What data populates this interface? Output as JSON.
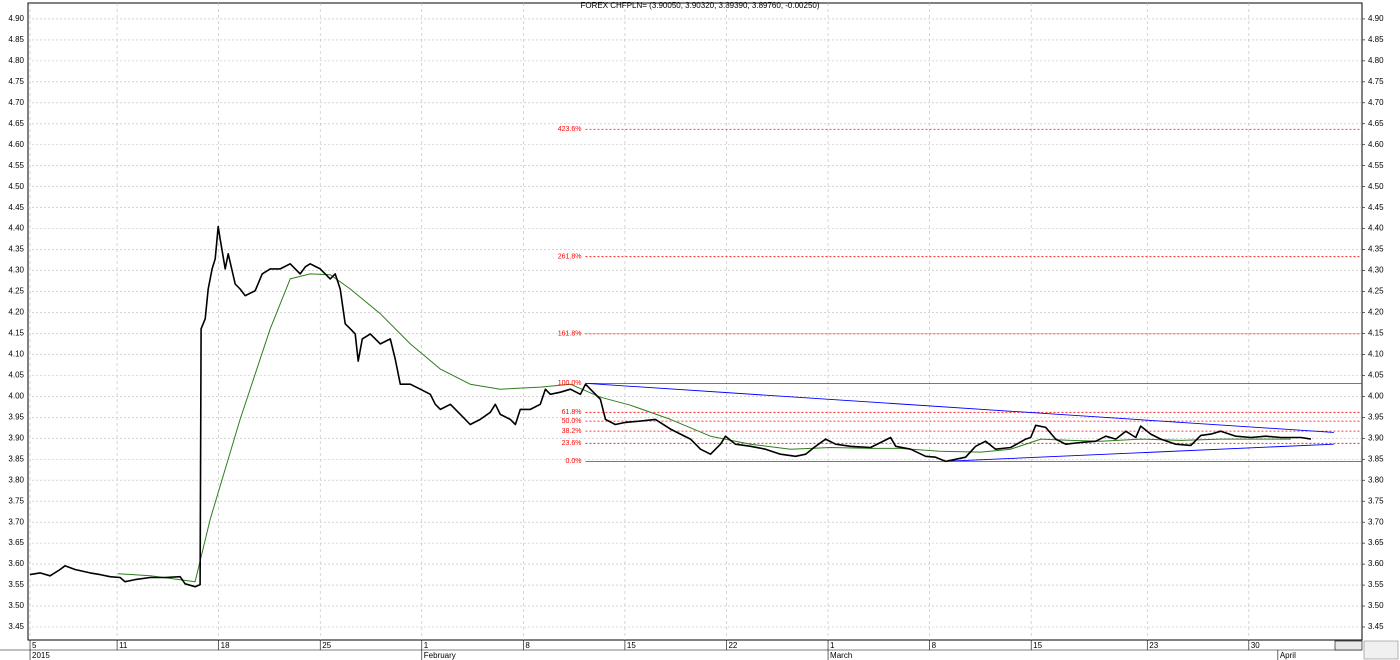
{
  "chart_data": {
    "type": "line",
    "title": "FOREX CHFPLN= (3.90050, 3.90320, 3.89390, 3.89760, -0.00250)",
    "xlim": [
      4.86,
      96.8
    ],
    "xticks": [
      {
        "value": 5,
        "label": "5"
      },
      {
        "value": 11,
        "label": "11"
      },
      {
        "value": 18,
        "label": "18"
      },
      {
        "value": 25,
        "label": "25"
      },
      {
        "value": 32,
        "label": "1"
      },
      {
        "value": 39,
        "label": "8"
      },
      {
        "value": 46,
        "label": "15"
      },
      {
        "value": 53,
        "label": "22"
      },
      {
        "value": 60,
        "label": "1"
      },
      {
        "value": 67,
        "label": "8"
      },
      {
        "value": 74,
        "label": "15"
      },
      {
        "value": 82,
        "label": "23"
      },
      {
        "value": 89,
        "label": "30"
      }
    ],
    "xticks_secondary": [
      {
        "value": 5,
        "label": "2015"
      },
      {
        "value": 32,
        "label": "February"
      },
      {
        "value": 60,
        "label": "March"
      },
      {
        "value": 91,
        "label": "April"
      }
    ],
    "ylim": [
      3.419,
      4.938
    ],
    "yticks": [
      3.45,
      {
        "value": 3.5,
        "label": "3.50"
      },
      3.55,
      {
        "value": 3.6,
        "label": "3.60"
      },
      3.65,
      {
        "value": 3.7,
        "label": "3.70"
      },
      3.75,
      {
        "value": 3.8,
        "label": "3.80"
      },
      3.85,
      {
        "value": 3.9,
        "label": "3.90"
      },
      3.95,
      {
        "value": 4,
        "label": "4.00"
      },
      4.05,
      {
        "value": 4.1,
        "label": "4.10"
      },
      4.15,
      {
        "value": 4.2,
        "label": "4.20"
      },
      4.25,
      {
        "value": 4.3,
        "label": "4.30"
      },
      4.35,
      {
        "value": 4.4,
        "label": "4.40"
      },
      4.45,
      {
        "value": 4.5,
        "label": "4.50"
      },
      4.55,
      {
        "value": 4.6,
        "label": "4.60"
      },
      4.65,
      {
        "value": 4.7,
        "label": "4.70"
      },
      4.75,
      {
        "value": 4.8,
        "label": "4.80"
      },
      4.85,
      {
        "value": 4.9,
        "label": "4.90"
      }
    ],
    "grid": true,
    "series": [
      {
        "color": "#000000",
        "x": [
          5.0,
          5.69,
          6.38,
          7.07,
          7.41,
          8.1,
          9.14,
          9.83,
          10.52,
          11.21,
          11.55,
          12.24,
          13.28,
          14.31,
          15.34,
          15.69,
          16.38,
          16.72,
          16.79,
          17.07,
          17.28,
          17.55,
          17.76,
          17.97,
          18.1,
          18.45,
          18.66,
          19.14,
          19.48,
          19.83,
          20.52,
          21.0,
          21.55,
          22.24,
          22.93,
          23.62,
          23.97,
          24.31,
          25.0,
          25.69,
          26.03,
          26.38,
          26.72,
          27.07,
          27.41,
          27.62,
          27.9,
          28.45,
          29.14,
          29.83,
          30.17,
          30.52,
          31.21,
          31.9,
          32.59,
          32.93,
          33.28,
          33.97,
          34.66,
          35.34,
          36.03,
          36.72,
          37.07,
          37.41,
          38.1,
          38.45,
          38.79,
          39.48,
          40.17,
          40.52,
          40.86,
          41.55,
          42.24,
          42.93,
          43.28,
          43.62,
          44.31,
          44.66,
          45.34,
          46.03,
          47.07,
          48.1,
          49.14,
          49.83,
          50.52,
          51.21,
          51.9,
          52.59,
          52.93,
          53.62,
          54.66,
          55.69,
          56.72,
          57.76,
          58.45,
          59.14,
          59.83,
          60.52,
          61.55,
          62.93,
          64.31,
          64.66,
          65.69,
          66.72,
          67.41,
          68.1,
          68.79,
          69.48,
          70.17,
          70.86,
          71.55,
          72.59,
          73.62,
          73.97,
          74.31,
          75.0,
          75.69,
          76.38,
          77.41,
          78.45,
          79.14,
          79.83,
          80.52,
          81.21,
          81.55,
          82.24,
          82.93,
          83.97,
          85.0,
          85.69,
          86.38,
          87.07,
          88.1,
          89.14,
          90.17,
          91.21,
          92.59,
          93.28
        ],
        "values": [
          3.575,
          3.579,
          3.572,
          3.587,
          3.596,
          3.587,
          3.579,
          3.575,
          3.57,
          3.568,
          3.558,
          3.563,
          3.568,
          3.568,
          3.57,
          3.553,
          3.546,
          3.551,
          4.161,
          4.185,
          4.256,
          4.304,
          4.328,
          4.405,
          4.376,
          4.304,
          4.34,
          4.268,
          4.256,
          4.24,
          4.252,
          4.292,
          4.304,
          4.304,
          4.316,
          4.292,
          4.309,
          4.316,
          4.304,
          4.28,
          4.292,
          4.256,
          4.173,
          4.161,
          4.149,
          4.084,
          4.137,
          4.149,
          4.125,
          4.137,
          4.089,
          4.029,
          4.029,
          4.017,
          4.005,
          3.981,
          3.969,
          3.981,
          3.957,
          3.933,
          3.945,
          3.962,
          3.981,
          3.957,
          3.945,
          3.933,
          3.969,
          3.969,
          3.981,
          4.017,
          4.005,
          4.01,
          4.017,
          4.005,
          4.029,
          4.017,
          3.993,
          3.945,
          3.933,
          3.938,
          3.941,
          3.945,
          3.922,
          3.91,
          3.898,
          3.874,
          3.862,
          3.886,
          3.905,
          3.886,
          3.881,
          3.874,
          3.862,
          3.857,
          3.862,
          3.881,
          3.898,
          3.886,
          3.881,
          3.878,
          3.902,
          3.881,
          3.874,
          3.857,
          3.855,
          3.845,
          3.85,
          3.855,
          3.881,
          3.893,
          3.874,
          3.878,
          3.898,
          3.902,
          3.931,
          3.926,
          3.898,
          3.886,
          3.89,
          3.893,
          3.905,
          3.898,
          3.917,
          3.902,
          3.929,
          3.91,
          3.898,
          3.886,
          3.883,
          3.907,
          3.91,
          3.917,
          3.905,
          3.902,
          3.905,
          3.902,
          3.902,
          3.898
        ]
      },
      {
        "color": "#2e7d1e",
        "x": [
          11.07,
          13.28,
          16.38,
          17.41,
          19.48,
          21.55,
          22.93,
          24.31,
          25.69,
          27.07,
          29.14,
          31.21,
          33.28,
          35.34,
          37.41,
          40.17,
          42.24,
          44.31,
          46.38,
          49.14,
          51.9,
          54.66,
          57.41,
          60.17,
          62.93,
          64.93,
          67.69,
          70.52,
          72.59,
          74.66,
          76.72,
          78.79,
          81.55,
          84.31,
          87.07,
          89.83,
          91.9
        ],
        "values": [
          3.577,
          3.572,
          3.558,
          3.706,
          3.945,
          4.161,
          4.28,
          4.292,
          4.29,
          4.256,
          4.197,
          4.125,
          4.065,
          4.029,
          4.017,
          4.022,
          4.029,
          3.998,
          3.979,
          3.945,
          3.905,
          3.886,
          3.874,
          3.878,
          3.876,
          3.876,
          3.869,
          3.867,
          3.874,
          3.898,
          3.895,
          3.893,
          3.898,
          3.895,
          3.898,
          3.898,
          3.898
        ]
      }
    ],
    "fib_color": "#ff0000",
    "fib_start": 43.28,
    "fib_levels": [
      {
        "value": 3.845,
        "label": "0.0%",
        "style": "solid"
      },
      {
        "value": 3.888,
        "label": "23.6%",
        "style": "dotted"
      },
      {
        "value": 3.917,
        "label": "38.2%",
        "style": "dotted"
      },
      {
        "value": 3.941,
        "label": "50.0%",
        "style": "dotted"
      },
      {
        "value": 3.962,
        "label": "61.8%",
        "style": "dotted"
      },
      {
        "value": 4.031,
        "label": "100.0%",
        "style": "solid"
      },
      {
        "value": 4.149,
        "label": "161.8%",
        "style": "dotted"
      },
      {
        "value": 4.333,
        "label": "261.8%",
        "style": "dotted"
      },
      {
        "value": 4.637,
        "label": "423.6%",
        "style": "dotted"
      }
    ],
    "trendlines": [
      {
        "color": "#0000ff",
        "x": [
          43.28,
          94.86
        ],
        "y": [
          4.031,
          3.914
        ]
      },
      {
        "color": "#0000ff",
        "x": [
          68.1,
          94.86
        ],
        "y": [
          3.845,
          3.886
        ]
      }
    ]
  }
}
